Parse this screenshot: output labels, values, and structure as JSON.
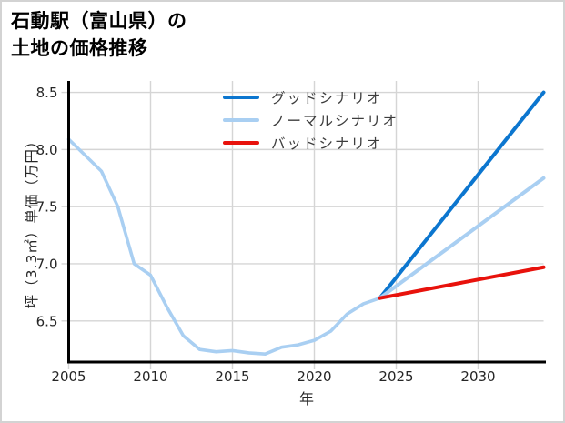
{
  "header": {
    "title_line1": "石動駅（富山県）の",
    "title_line2": "土地の価格推移"
  },
  "chart_data": {
    "type": "line",
    "title": "石動駅（富山県）の土地の価格推移",
    "xlabel": "年",
    "ylabel": "坪（3.3㎡）単価（万円）",
    "x_ticks": [
      "2005",
      "2010",
      "2015",
      "2020",
      "2025",
      "2030"
    ],
    "y_ticks": [
      "8.5",
      "8.0",
      "7.5",
      "7.0",
      "6.5"
    ],
    "xlim": [
      2005,
      2034
    ],
    "ylim": [
      6.14,
      8.6
    ],
    "grid": true,
    "grid_color": "#d5d5d5",
    "axis_color": "#000000",
    "legend_position": "top-inside",
    "history": {
      "color": "#a9cff2",
      "x": [
        2005,
        2006,
        2007,
        2008,
        2009,
        2010,
        2011,
        2012,
        2013,
        2014,
        2015,
        2016,
        2017,
        2018,
        2019,
        2020,
        2021,
        2022,
        2023,
        2024
      ],
      "y": [
        8.09,
        7.95,
        7.81,
        7.5,
        7.0,
        6.9,
        6.62,
        6.37,
        6.25,
        6.23,
        6.24,
        6.22,
        6.21,
        6.27,
        6.29,
        6.33,
        6.41,
        6.56,
        6.65,
        6.7
      ]
    },
    "series": [
      {
        "name": "グッドシナリオ",
        "key": "good-scenario",
        "color": "#0c76cf",
        "x": [
          2024,
          2034
        ],
        "y": [
          6.7,
          8.5
        ]
      },
      {
        "name": "ノーマルシナリオ",
        "key": "normal-scenario",
        "color": "#a9cff2",
        "x": [
          2024,
          2034
        ],
        "y": [
          6.7,
          7.75
        ]
      },
      {
        "name": "バッドシナリオ",
        "key": "bad-scenario",
        "color": "#e8120c",
        "x": [
          2024,
          2034
        ],
        "y": [
          6.7,
          6.97
        ]
      }
    ]
  }
}
